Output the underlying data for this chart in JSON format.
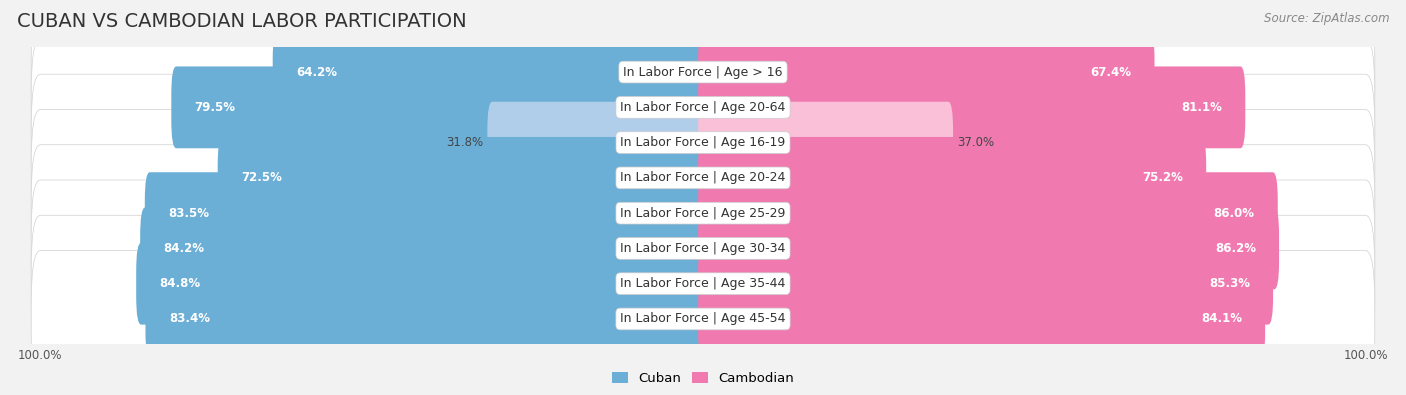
{
  "title": "CUBAN VS CAMBODIAN LABOR PARTICIPATION",
  "source": "Source: ZipAtlas.com",
  "categories": [
    "In Labor Force | Age > 16",
    "In Labor Force | Age 20-64",
    "In Labor Force | Age 16-19",
    "In Labor Force | Age 20-24",
    "In Labor Force | Age 25-29",
    "In Labor Force | Age 30-34",
    "In Labor Force | Age 35-44",
    "In Labor Force | Age 45-54"
  ],
  "cuban_values": [
    64.2,
    79.5,
    31.8,
    72.5,
    83.5,
    84.2,
    84.8,
    83.4
  ],
  "cambodian_values": [
    67.4,
    81.1,
    37.0,
    75.2,
    86.0,
    86.2,
    85.3,
    84.1
  ],
  "cuban_color": "#6BAED6",
  "cuban_color_light": "#B0CEEA",
  "cambodian_color": "#F07AB0",
  "cambodian_color_light": "#F9C0D8",
  "bg_color": "#f2f2f2",
  "row_bg_color": "#e8e8e8",
  "max_value": 100.0,
  "bar_height": 0.72,
  "title_fontsize": 14,
  "label_fontsize": 9,
  "value_fontsize": 8.5,
  "legend_fontsize": 9.5
}
